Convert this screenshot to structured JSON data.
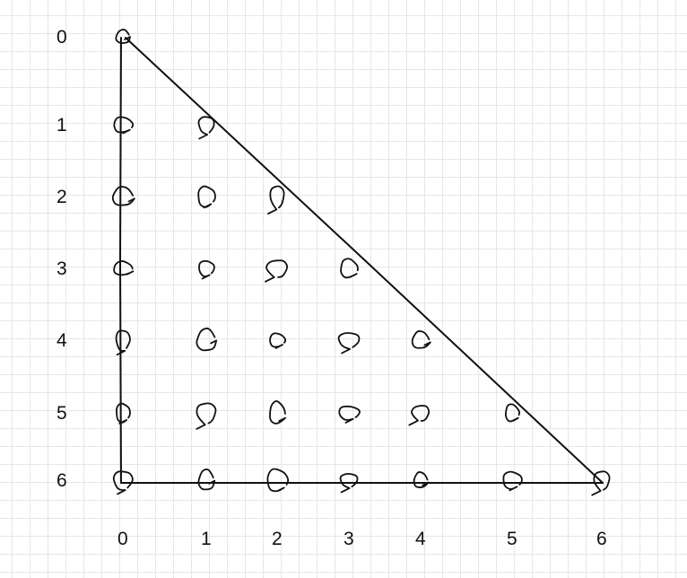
{
  "diagram": {
    "row_labels": [
      "0",
      "1",
      "2",
      "3",
      "4",
      "5",
      "6"
    ],
    "col_labels": [
      "0",
      "1",
      "2",
      "3",
      "4",
      "5",
      "6"
    ],
    "points": [
      {
        "r": 0,
        "c": 0
      },
      {
        "r": 1,
        "c": 0
      },
      {
        "r": 1,
        "c": 1
      },
      {
        "r": 2,
        "c": 0
      },
      {
        "r": 2,
        "c": 1
      },
      {
        "r": 2,
        "c": 2
      },
      {
        "r": 3,
        "c": 0
      },
      {
        "r": 3,
        "c": 1
      },
      {
        "r": 3,
        "c": 2
      },
      {
        "r": 3,
        "c": 3
      },
      {
        "r": 4,
        "c": 0
      },
      {
        "r": 4,
        "c": 1
      },
      {
        "r": 4,
        "c": 2
      },
      {
        "r": 4,
        "c": 3
      },
      {
        "r": 4,
        "c": 4
      },
      {
        "r": 5,
        "c": 0
      },
      {
        "r": 5,
        "c": 1
      },
      {
        "r": 5,
        "c": 2
      },
      {
        "r": 5,
        "c": 3
      },
      {
        "r": 5,
        "c": 4
      },
      {
        "r": 5,
        "c": 5
      },
      {
        "r": 6,
        "c": 0
      },
      {
        "r": 6,
        "c": 1
      },
      {
        "r": 6,
        "c": 2
      },
      {
        "r": 6,
        "c": 3
      },
      {
        "r": 6,
        "c": 4
      },
      {
        "r": 6,
        "c": 5
      },
      {
        "r": 6,
        "c": 6
      }
    ],
    "ink_color": "#111111",
    "grid_color": "#e6e6e6"
  }
}
